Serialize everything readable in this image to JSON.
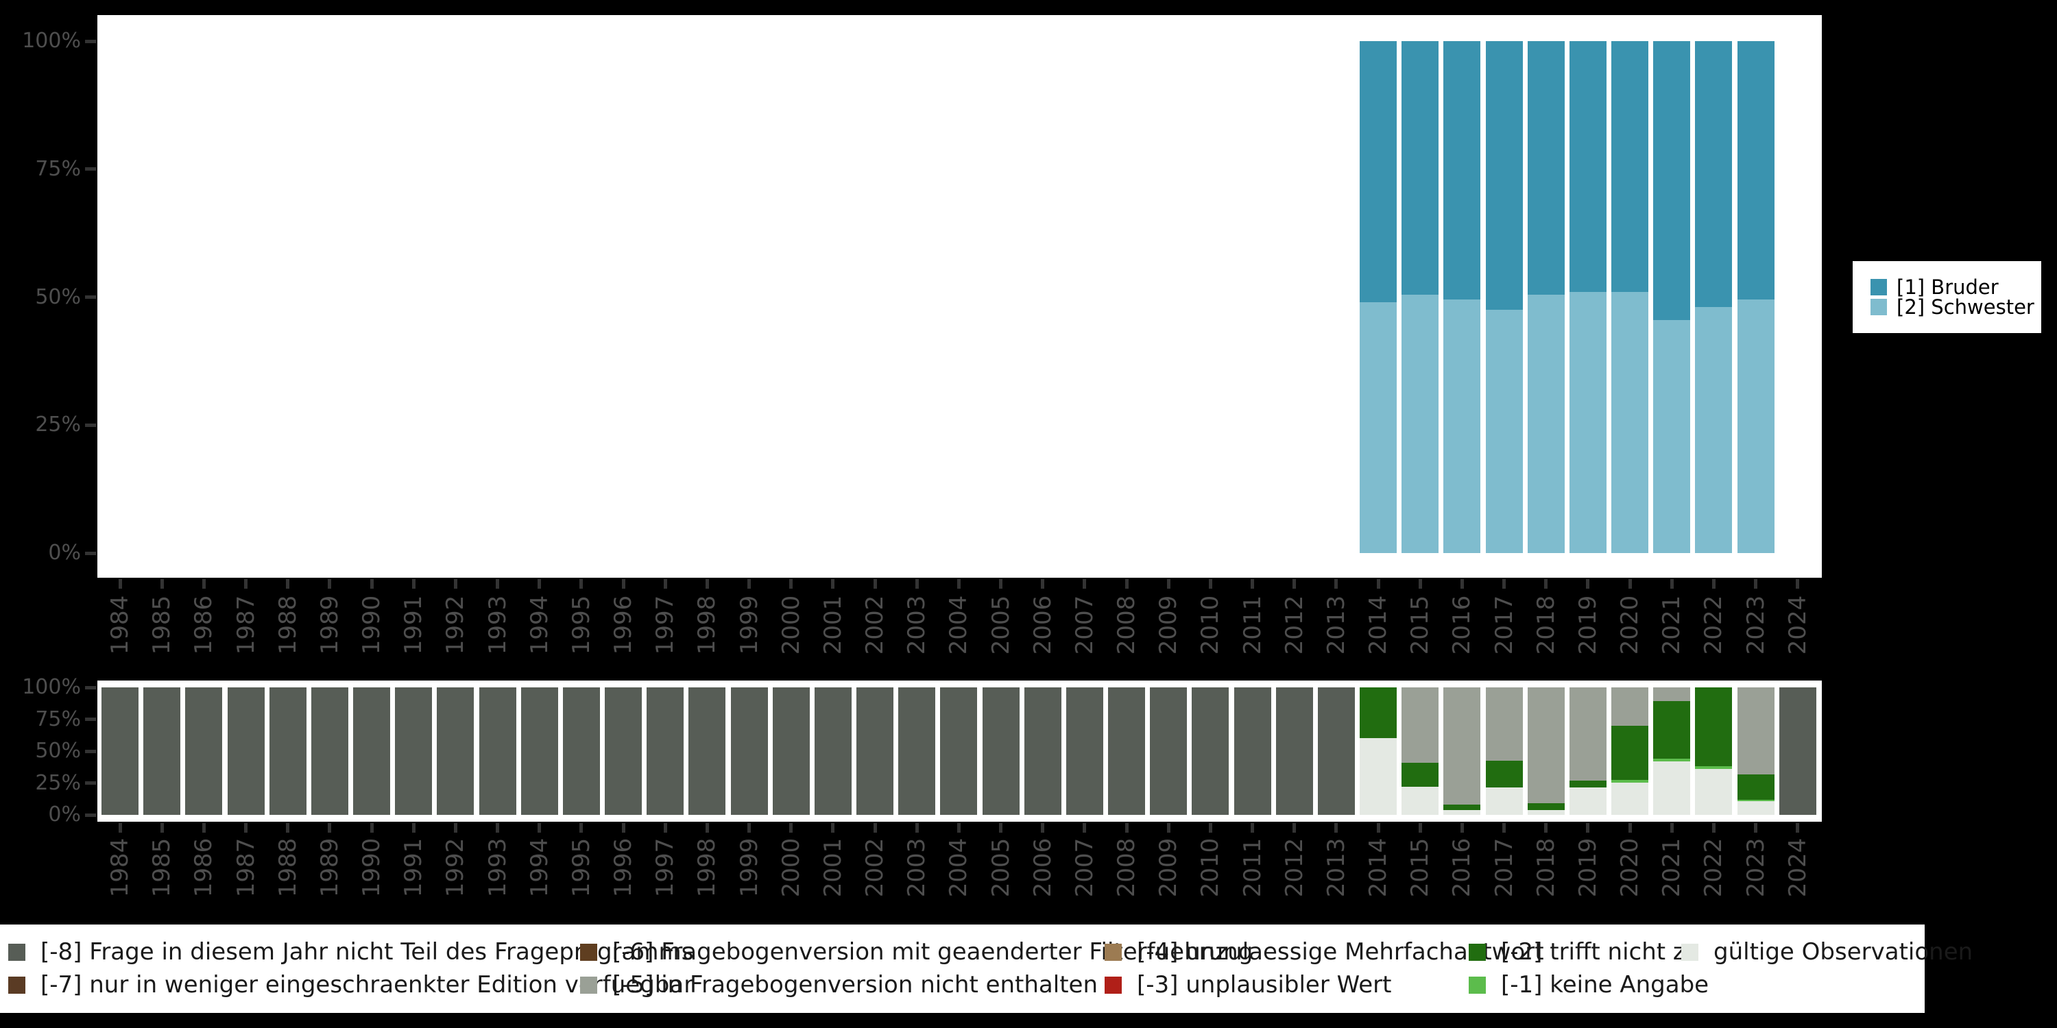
{
  "background": "#000000",
  "plot_background": "#ffffff",
  "axis_text_color": "#4E4E4E",
  "tick_color": "#333333",
  "chart_data": [
    {
      "type": "bar",
      "stacked": true,
      "percent": true,
      "title": "",
      "xlabel": "",
      "ylabel": "",
      "ylim": [
        0,
        100
      ],
      "grid": false,
      "legend_position": "right",
      "x": [
        1984,
        1985,
        1986,
        1987,
        1988,
        1989,
        1990,
        1991,
        1992,
        1993,
        1994,
        1995,
        1996,
        1997,
        1998,
        1999,
        2000,
        2001,
        2002,
        2003,
        2004,
        2005,
        2006,
        2007,
        2008,
        2009,
        2010,
        2011,
        2012,
        2013,
        2014,
        2015,
        2016,
        2017,
        2018,
        2019,
        2020,
        2021,
        2022,
        2023,
        2024
      ],
      "y_tick_labels": [
        "100%",
        "75%",
        "50%",
        "25%",
        "0%"
      ],
      "series": [
        {
          "name": "[1] Bruder",
          "color": "#3A93AF",
          "values": [
            null,
            null,
            null,
            null,
            null,
            null,
            null,
            null,
            null,
            null,
            null,
            null,
            null,
            null,
            null,
            null,
            null,
            null,
            null,
            null,
            null,
            null,
            null,
            null,
            null,
            null,
            null,
            null,
            null,
            null,
            51,
            49.5,
            50.5,
            52.5,
            49.5,
            49,
            49,
            54.5,
            52,
            50.5,
            null
          ]
        },
        {
          "name": "[2] Schwester",
          "color": "#7FBCCE",
          "values": [
            null,
            null,
            null,
            null,
            null,
            null,
            null,
            null,
            null,
            null,
            null,
            null,
            null,
            null,
            null,
            null,
            null,
            null,
            null,
            null,
            null,
            null,
            null,
            null,
            null,
            null,
            null,
            null,
            null,
            null,
            49,
            50.5,
            49.5,
            47.5,
            50.5,
            51,
            51,
            45.5,
            48,
            49.5,
            null
          ]
        }
      ]
    },
    {
      "type": "bar",
      "stacked": true,
      "percent": true,
      "title": "",
      "xlabel": "",
      "ylabel": "",
      "ylim": [
        0,
        100
      ],
      "grid": false,
      "legend_position": "bottom",
      "x": [
        1984,
        1985,
        1986,
        1987,
        1988,
        1989,
        1990,
        1991,
        1992,
        1993,
        1994,
        1995,
        1996,
        1997,
        1998,
        1999,
        2000,
        2001,
        2002,
        2003,
        2004,
        2005,
        2006,
        2007,
        2008,
        2009,
        2010,
        2011,
        2012,
        2013,
        2014,
        2015,
        2016,
        2017,
        2018,
        2019,
        2020,
        2021,
        2022,
        2023,
        2024
      ],
      "y_tick_labels": [
        "100%",
        "75%",
        "50%",
        "25%",
        "0%"
      ],
      "series": [
        {
          "name": "[-8] Frage in diesem Jahr nicht Teil des Frageprogramms",
          "color": "#575D56",
          "values": [
            100,
            100,
            100,
            100,
            100,
            100,
            100,
            100,
            100,
            100,
            100,
            100,
            100,
            100,
            100,
            100,
            100,
            100,
            100,
            100,
            100,
            100,
            100,
            100,
            100,
            100,
            100,
            100,
            100,
            100,
            0,
            0,
            0,
            0,
            0,
            0,
            0,
            0,
            0,
            0,
            100
          ]
        },
        {
          "name": "[-7] nur in weniger eingeschraenkter Edition verfuegbar",
          "color": "#5A3B24",
          "values": null
        },
        {
          "name": "[-6] Fragebogenversion mit geaenderter Filterfuehrung",
          "color": "#5F3E20",
          "values": null
        },
        {
          "name": "[-5] in Fragebogenversion nicht enthalten",
          "color": "#9AA096",
          "values": [
            0,
            0,
            0,
            0,
            0,
            0,
            0,
            0,
            0,
            0,
            0,
            0,
            0,
            0,
            0,
            0,
            0,
            0,
            0,
            0,
            0,
            0,
            0,
            0,
            0,
            0,
            0,
            0,
            0,
            0,
            0,
            59,
            92,
            57.5,
            91,
            73,
            30,
            11,
            0,
            68.5,
            0
          ]
        },
        {
          "name": "[-4] unzulaessige Mehrfachantwort",
          "color": "#9C7B52",
          "values": null
        },
        {
          "name": "[-3] unplausibler Wert",
          "color": "#B01F18",
          "values": null
        },
        {
          "name": "[-2] trifft nicht zu",
          "color": "#216D10",
          "values": [
            0,
            0,
            0,
            0,
            0,
            0,
            0,
            0,
            0,
            0,
            0,
            0,
            0,
            0,
            0,
            0,
            0,
            0,
            0,
            0,
            0,
            0,
            0,
            0,
            0,
            0,
            0,
            0,
            0,
            0,
            40,
            19,
            4.5,
            21,
            5,
            5.5,
            42.5,
            45,
            62,
            19.5,
            0
          ]
        },
        {
          "name": "[-1] keine Angabe",
          "color": "#5CBC4C",
          "values": [
            0,
            0,
            0,
            0,
            0,
            0,
            0,
            0,
            0,
            0,
            0,
            0,
            0,
            0,
            0,
            0,
            0,
            0,
            0,
            0,
            0,
            0,
            0,
            0,
            0,
            0,
            0,
            0,
            0,
            0,
            0,
            0,
            0,
            0,
            0,
            0,
            2,
            2,
            2,
            1.5,
            0
          ]
        },
        {
          "name": "gültige Observationen",
          "color": "#E4E9E3",
          "values": [
            0,
            0,
            0,
            0,
            0,
            0,
            0,
            0,
            0,
            0,
            0,
            0,
            0,
            0,
            0,
            0,
            0,
            0,
            0,
            0,
            0,
            0,
            0,
            0,
            0,
            0,
            0,
            0,
            0,
            0,
            60,
            22,
            3.5,
            21.5,
            4,
            21.5,
            25.5,
            42,
            36,
            10.5,
            0
          ]
        }
      ]
    }
  ],
  "right_legend": {
    "items": [
      {
        "label": "[1] Bruder",
        "color": "#3A93AF"
      },
      {
        "label": "[2] Schwester",
        "color": "#7FBCCE"
      }
    ]
  },
  "bottom_legend": {
    "items": [
      {
        "label": "[-8] Frage in diesem Jahr nicht Teil des Frageprogramms",
        "color": "#575D56"
      },
      {
        "label": "[-7] nur in weniger eingeschraenkter Edition verfuegbar",
        "color": "#5A3B24"
      },
      {
        "label": "[-6] Fragebogenversion mit geaenderter Filterfuehrung",
        "color": "#5F3E20"
      },
      {
        "label": "[-5] in Fragebogenversion nicht enthalten",
        "color": "#9AA096"
      },
      {
        "label": "[-4] unzulaessige Mehrfachantwort",
        "color": "#9C7B52"
      },
      {
        "label": "[-3] unplausibler Wert",
        "color": "#B01F18"
      },
      {
        "label": "[-2] trifft nicht zu",
        "color": "#216D10"
      },
      {
        "label": "[-1] keine Angabe",
        "color": "#5CBC4C"
      },
      {
        "label": "gültige Observationen",
        "color": "#E4E9E3"
      }
    ]
  }
}
